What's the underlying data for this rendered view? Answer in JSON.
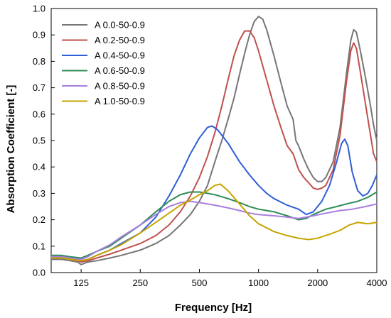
{
  "chart_data": {
    "type": "line",
    "title": "",
    "xlabel": "Frequency [Hz]",
    "ylabel": "Absorption Coefficient [-]",
    "x_scale": "log2",
    "xlim": [
      88,
      4000
    ],
    "ylim": [
      0.0,
      1.0
    ],
    "x_ticks": [
      125,
      250,
      500,
      1000,
      2000,
      4000
    ],
    "y_ticks": [
      0.0,
      0.1,
      0.2,
      0.3,
      0.4,
      0.5,
      0.6,
      0.7,
      0.8,
      0.9,
      1.0
    ],
    "y_tick_labels": [
      "0.0",
      "0.1",
      "0.2",
      "0.3",
      "0.4",
      "0.5",
      "0.6",
      "0.7",
      "0.8",
      "0.9",
      "1.0"
    ],
    "legend_position": "top-left",
    "grid": false,
    "series": [
      {
        "name": "A 0.0-50-0.9",
        "color": "#767676",
        "points": [
          [
            88,
            0.05
          ],
          [
            100,
            0.05
          ],
          [
            110,
            0.045
          ],
          [
            120,
            0.04
          ],
          [
            125,
            0.03
          ],
          [
            135,
            0.04
          ],
          [
            150,
            0.045
          ],
          [
            175,
            0.055
          ],
          [
            200,
            0.065
          ],
          [
            250,
            0.085
          ],
          [
            300,
            0.11
          ],
          [
            350,
            0.14
          ],
          [
            400,
            0.18
          ],
          [
            450,
            0.22
          ],
          [
            500,
            0.27
          ],
          [
            550,
            0.33
          ],
          [
            600,
            0.42
          ],
          [
            650,
            0.5
          ],
          [
            700,
            0.58
          ],
          [
            750,
            0.66
          ],
          [
            800,
            0.75
          ],
          [
            850,
            0.83
          ],
          [
            900,
            0.9
          ],
          [
            950,
            0.95
          ],
          [
            1000,
            0.97
          ],
          [
            1050,
            0.96
          ],
          [
            1100,
            0.92
          ],
          [
            1200,
            0.82
          ],
          [
            1300,
            0.72
          ],
          [
            1400,
            0.63
          ],
          [
            1500,
            0.58
          ],
          [
            1550,
            0.5
          ],
          [
            1600,
            0.48
          ],
          [
            1700,
            0.43
          ],
          [
            1800,
            0.39
          ],
          [
            1900,
            0.36
          ],
          [
            2000,
            0.345
          ],
          [
            2100,
            0.345
          ],
          [
            2200,
            0.36
          ],
          [
            2400,
            0.42
          ],
          [
            2600,
            0.55
          ],
          [
            2800,
            0.75
          ],
          [
            2950,
            0.88
          ],
          [
            3050,
            0.92
          ],
          [
            3150,
            0.91
          ],
          [
            3300,
            0.84
          ],
          [
            3500,
            0.74
          ],
          [
            3700,
            0.64
          ],
          [
            3850,
            0.56
          ],
          [
            4000,
            0.5
          ]
        ]
      },
      {
        "name": "A 0.2-50-0.9",
        "color": "#c0504d",
        "points": [
          [
            88,
            0.055
          ],
          [
            100,
            0.055
          ],
          [
            110,
            0.05
          ],
          [
            120,
            0.045
          ],
          [
            125,
            0.04
          ],
          [
            135,
            0.045
          ],
          [
            150,
            0.055
          ],
          [
            175,
            0.07
          ],
          [
            200,
            0.085
          ],
          [
            250,
            0.11
          ],
          [
            300,
            0.14
          ],
          [
            350,
            0.18
          ],
          [
            400,
            0.23
          ],
          [
            450,
            0.29
          ],
          [
            500,
            0.36
          ],
          [
            550,
            0.44
          ],
          [
            600,
            0.53
          ],
          [
            650,
            0.63
          ],
          [
            700,
            0.73
          ],
          [
            750,
            0.82
          ],
          [
            800,
            0.88
          ],
          [
            850,
            0.915
          ],
          [
            900,
            0.915
          ],
          [
            950,
            0.89
          ],
          [
            1000,
            0.84
          ],
          [
            1100,
            0.73
          ],
          [
            1200,
            0.63
          ],
          [
            1300,
            0.55
          ],
          [
            1400,
            0.48
          ],
          [
            1500,
            0.45
          ],
          [
            1600,
            0.39
          ],
          [
            1700,
            0.36
          ],
          [
            1800,
            0.34
          ],
          [
            1900,
            0.32
          ],
          [
            2000,
            0.315
          ],
          [
            2100,
            0.32
          ],
          [
            2200,
            0.33
          ],
          [
            2400,
            0.39
          ],
          [
            2600,
            0.52
          ],
          [
            2800,
            0.72
          ],
          [
            2950,
            0.84
          ],
          [
            3050,
            0.87
          ],
          [
            3150,
            0.85
          ],
          [
            3300,
            0.76
          ],
          [
            3500,
            0.64
          ],
          [
            3700,
            0.53
          ],
          [
            3850,
            0.45
          ],
          [
            4000,
            0.42
          ]
        ]
      },
      {
        "name": "A 0.4-50-0.9",
        "color": "#2e5fd6",
        "points": [
          [
            88,
            0.06
          ],
          [
            100,
            0.06
          ],
          [
            110,
            0.055
          ],
          [
            120,
            0.05
          ],
          [
            125,
            0.045
          ],
          [
            135,
            0.05
          ],
          [
            150,
            0.065
          ],
          [
            175,
            0.085
          ],
          [
            200,
            0.11
          ],
          [
            250,
            0.15
          ],
          [
            300,
            0.21
          ],
          [
            350,
            0.29
          ],
          [
            400,
            0.37
          ],
          [
            450,
            0.45
          ],
          [
            500,
            0.51
          ],
          [
            550,
            0.55
          ],
          [
            580,
            0.555
          ],
          [
            620,
            0.54
          ],
          [
            700,
            0.49
          ],
          [
            800,
            0.42
          ],
          [
            900,
            0.37
          ],
          [
            1000,
            0.33
          ],
          [
            1100,
            0.3
          ],
          [
            1200,
            0.28
          ],
          [
            1400,
            0.255
          ],
          [
            1600,
            0.24
          ],
          [
            1750,
            0.22
          ],
          [
            1900,
            0.23
          ],
          [
            2100,
            0.27
          ],
          [
            2300,
            0.33
          ],
          [
            2500,
            0.42
          ],
          [
            2650,
            0.49
          ],
          [
            2750,
            0.505
          ],
          [
            2850,
            0.48
          ],
          [
            3000,
            0.38
          ],
          [
            3200,
            0.31
          ],
          [
            3400,
            0.29
          ],
          [
            3600,
            0.3
          ],
          [
            3800,
            0.33
          ],
          [
            4000,
            0.37
          ]
        ]
      },
      {
        "name": "A 0.6-50-0.9",
        "color": "#2e8b57",
        "points": [
          [
            88,
            0.065
          ],
          [
            100,
            0.065
          ],
          [
            110,
            0.06
          ],
          [
            125,
            0.055
          ],
          [
            135,
            0.065
          ],
          [
            150,
            0.08
          ],
          [
            175,
            0.1
          ],
          [
            200,
            0.13
          ],
          [
            250,
            0.18
          ],
          [
            300,
            0.23
          ],
          [
            350,
            0.27
          ],
          [
            400,
            0.295
          ],
          [
            450,
            0.305
          ],
          [
            500,
            0.305
          ],
          [
            550,
            0.3
          ],
          [
            600,
            0.295
          ],
          [
            700,
            0.28
          ],
          [
            800,
            0.265
          ],
          [
            900,
            0.25
          ],
          [
            1000,
            0.24
          ],
          [
            1200,
            0.23
          ],
          [
            1400,
            0.215
          ],
          [
            1600,
            0.2
          ],
          [
            1750,
            0.205
          ],
          [
            1900,
            0.22
          ],
          [
            2200,
            0.24
          ],
          [
            2500,
            0.25
          ],
          [
            2800,
            0.26
          ],
          [
            3200,
            0.27
          ],
          [
            3600,
            0.285
          ],
          [
            4000,
            0.305
          ]
        ]
      },
      {
        "name": "A 0.8-50-0.9",
        "color": "#a77fe0",
        "points": [
          [
            88,
            0.06
          ],
          [
            100,
            0.06
          ],
          [
            110,
            0.055
          ],
          [
            125,
            0.05
          ],
          [
            135,
            0.06
          ],
          [
            150,
            0.08
          ],
          [
            175,
            0.105
          ],
          [
            200,
            0.135
          ],
          [
            250,
            0.18
          ],
          [
            300,
            0.22
          ],
          [
            350,
            0.25
          ],
          [
            400,
            0.265
          ],
          [
            450,
            0.27
          ],
          [
            500,
            0.265
          ],
          [
            550,
            0.26
          ],
          [
            600,
            0.255
          ],
          [
            700,
            0.245
          ],
          [
            800,
            0.235
          ],
          [
            900,
            0.225
          ],
          [
            1000,
            0.22
          ],
          [
            1200,
            0.215
          ],
          [
            1400,
            0.21
          ],
          [
            1600,
            0.205
          ],
          [
            1750,
            0.21
          ],
          [
            1900,
            0.215
          ],
          [
            2200,
            0.225
          ],
          [
            2600,
            0.235
          ],
          [
            3000,
            0.24
          ],
          [
            3500,
            0.25
          ],
          [
            4000,
            0.26
          ]
        ]
      },
      {
        "name": "A 1.0-50-0.9",
        "color": "#c6a400",
        "points": [
          [
            88,
            0.055
          ],
          [
            100,
            0.055
          ],
          [
            110,
            0.05
          ],
          [
            125,
            0.045
          ],
          [
            135,
            0.05
          ],
          [
            150,
            0.065
          ],
          [
            175,
            0.085
          ],
          [
            200,
            0.105
          ],
          [
            250,
            0.15
          ],
          [
            300,
            0.19
          ],
          [
            350,
            0.225
          ],
          [
            400,
            0.255
          ],
          [
            450,
            0.275
          ],
          [
            500,
            0.295
          ],
          [
            550,
            0.31
          ],
          [
            600,
            0.33
          ],
          [
            640,
            0.335
          ],
          [
            700,
            0.31
          ],
          [
            800,
            0.26
          ],
          [
            900,
            0.215
          ],
          [
            1000,
            0.185
          ],
          [
            1200,
            0.155
          ],
          [
            1400,
            0.14
          ],
          [
            1600,
            0.13
          ],
          [
            1800,
            0.125
          ],
          [
            2000,
            0.13
          ],
          [
            2300,
            0.145
          ],
          [
            2600,
            0.16
          ],
          [
            2900,
            0.18
          ],
          [
            3200,
            0.19
          ],
          [
            3600,
            0.185
          ],
          [
            4000,
            0.19
          ]
        ]
      }
    ]
  }
}
